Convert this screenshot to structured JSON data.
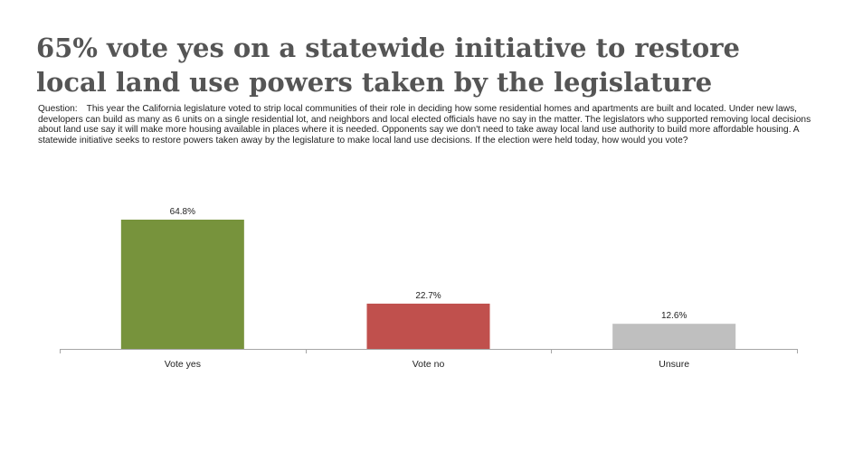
{
  "title_lines": [
    "65% vote yes on a statewide initiative to restore",
    "local land use powers taken by the legislature"
  ],
  "question": {
    "label": "Question:",
    "text": "This year the California legislature voted to strip local communities of their role in deciding how some residential homes and apartments are built and located. Under new laws, developers can build as many as 6 units on a single residential lot, and neighbors and local elected officials have no say in the matter. The legislators who supported removing local decisions about land use say it will make more housing available in places where it is needed. Opponents say we don't need to take away local land use authority to build more affordable housing. A statewide initiative seeks to restore powers taken away by the legislature to make local land use decisions. If the election were held today, how would you vote?"
  },
  "chart_data": {
    "type": "bar",
    "categories": [
      "Vote yes",
      "Vote no",
      "Unsure"
    ],
    "values": [
      64.8,
      22.7,
      12.6
    ],
    "data_labels": [
      "64.8%",
      "22.7%",
      "12.6%"
    ],
    "colors": [
      "#77933c",
      "#c0504d",
      "#bfbfbf"
    ],
    "ylim": [
      0,
      64.8
    ],
    "grid": false,
    "title": "",
    "xlabel": "",
    "ylabel": ""
  }
}
